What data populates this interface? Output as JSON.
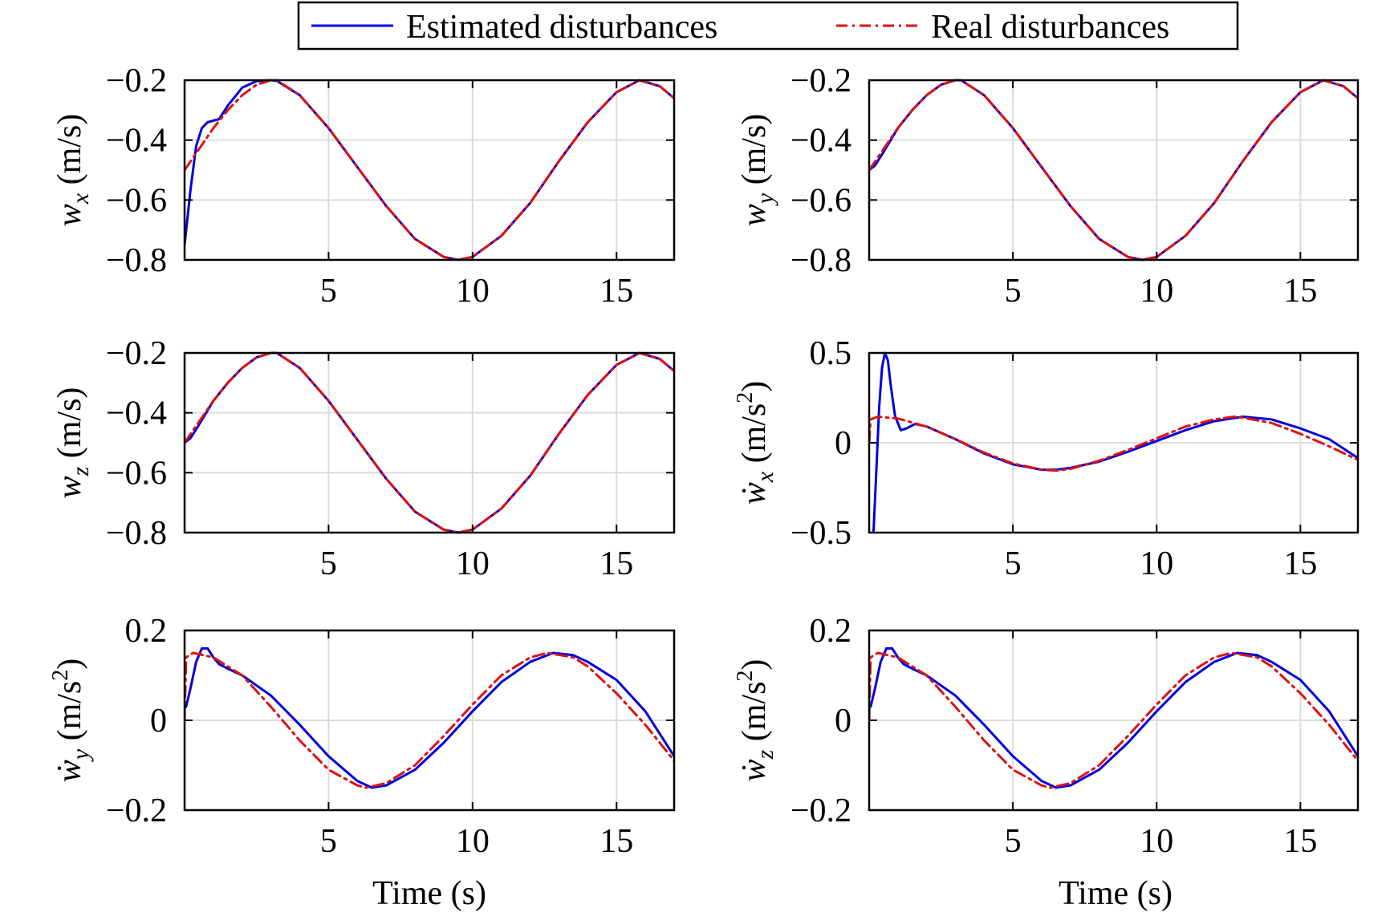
{
  "legend": {
    "estimated_label": "Estimated disturbances",
    "real_label": "Real disturbances"
  },
  "colors": {
    "estimated": "#0000dd",
    "real": "#dd1111",
    "grid": "#dcdcdc",
    "axis": "#000000"
  },
  "xlabel": "Time (s)",
  "chart_data": [
    {
      "type": "line",
      "id": "wx",
      "ylabel": {
        "base": "w",
        "sub": "x",
        "dot": false,
        "unit": " (m/s)",
        "sup": ""
      },
      "xlim": [
        0,
        17
      ],
      "ylim": [
        -0.8,
        -0.2
      ],
      "xticks": [
        "5",
        "10",
        "15"
      ],
      "yticks": [
        "−0.2",
        "−0.4",
        "−0.6",
        "−0.8"
      ],
      "grid": true,
      "series": [
        {
          "name": "Estimated disturbances",
          "style": "solid",
          "x": [
            0,
            0.2,
            0.4,
            0.6,
            0.8,
            1.0,
            1.2,
            1.5,
            2.0,
            2.5,
            3.0,
            3.2,
            4.0,
            5.0,
            6.0,
            7.0,
            8.0,
            9.0,
            9.5,
            10.0,
            11.0,
            12.0,
            13.0,
            14.0,
            15.0,
            15.8,
            16.5,
            17.0
          ],
          "y": [
            -0.75,
            -0.57,
            -0.42,
            -0.36,
            -0.34,
            -0.335,
            -0.33,
            -0.285,
            -0.225,
            -0.203,
            -0.2,
            -0.202,
            -0.25,
            -0.36,
            -0.49,
            -0.62,
            -0.73,
            -0.79,
            -0.8,
            -0.79,
            -0.72,
            -0.61,
            -0.47,
            -0.34,
            -0.24,
            -0.2,
            -0.22,
            -0.26
          ]
        },
        {
          "name": "Real disturbances",
          "style": "dashdot",
          "x": [
            0,
            0.5,
            1.0,
            1.5,
            2.0,
            2.5,
            3.0,
            3.2,
            4.0,
            5.0,
            6.0,
            7.0,
            8.0,
            9.0,
            9.5,
            10.0,
            11.0,
            12.0,
            13.0,
            14.0,
            15.0,
            15.8,
            16.5,
            17.0
          ],
          "y": [
            -0.5,
            -0.43,
            -0.36,
            -0.3,
            -0.25,
            -0.215,
            -0.2,
            -0.2,
            -0.25,
            -0.36,
            -0.49,
            -0.62,
            -0.73,
            -0.79,
            -0.8,
            -0.79,
            -0.72,
            -0.61,
            -0.47,
            -0.34,
            -0.24,
            -0.2,
            -0.22,
            -0.26
          ]
        }
      ]
    },
    {
      "type": "line",
      "id": "wy",
      "ylabel": {
        "base": "w",
        "sub": "y",
        "dot": false,
        "unit": " (m/s)",
        "sup": ""
      },
      "xlim": [
        0,
        17
      ],
      "ylim": [
        -0.8,
        -0.2
      ],
      "xticks": [
        "5",
        "10",
        "15"
      ],
      "yticks": [
        "−0.2",
        "−0.4",
        "−0.6",
        "−0.8"
      ],
      "grid": true,
      "series": [
        {
          "name": "Estimated disturbances",
          "style": "solid",
          "x": [
            0,
            0.2,
            0.5,
            1.0,
            1.5,
            2.0,
            2.5,
            3.0,
            3.2,
            4.0,
            5.0,
            6.0,
            7.0,
            8.0,
            9.0,
            9.5,
            10.0,
            11.0,
            12.0,
            13.0,
            14.0,
            15.0,
            15.8,
            16.5,
            17.0
          ],
          "y": [
            -0.5,
            -0.485,
            -0.44,
            -0.36,
            -0.3,
            -0.25,
            -0.215,
            -0.2,
            -0.2,
            -0.25,
            -0.36,
            -0.49,
            -0.62,
            -0.73,
            -0.79,
            -0.8,
            -0.79,
            -0.72,
            -0.61,
            -0.47,
            -0.34,
            -0.24,
            -0.2,
            -0.22,
            -0.26
          ]
        },
        {
          "name": "Real disturbances",
          "style": "dashdot",
          "x": [
            0,
            0.5,
            1.0,
            1.5,
            2.0,
            2.5,
            3.0,
            3.2,
            4.0,
            5.0,
            6.0,
            7.0,
            8.0,
            9.0,
            9.5,
            10.0,
            11.0,
            12.0,
            13.0,
            14.0,
            15.0,
            15.8,
            16.5,
            17.0
          ],
          "y": [
            -0.5,
            -0.43,
            -0.36,
            -0.3,
            -0.25,
            -0.215,
            -0.2,
            -0.2,
            -0.25,
            -0.36,
            -0.49,
            -0.62,
            -0.73,
            -0.79,
            -0.8,
            -0.79,
            -0.72,
            -0.61,
            -0.47,
            -0.34,
            -0.24,
            -0.2,
            -0.22,
            -0.26
          ]
        }
      ]
    },
    {
      "type": "line",
      "id": "wz",
      "ylabel": {
        "base": "w",
        "sub": "z",
        "dot": false,
        "unit": " (m/s)",
        "sup": ""
      },
      "xlim": [
        0,
        17
      ],
      "ylim": [
        -0.8,
        -0.2
      ],
      "xticks": [
        "5",
        "10",
        "15"
      ],
      "yticks": [
        "−0.2",
        "−0.4",
        "−0.6",
        "−0.8"
      ],
      "grid": true,
      "series": [
        {
          "name": "Estimated disturbances",
          "style": "solid",
          "x": [
            0,
            0.2,
            0.5,
            1.0,
            1.5,
            2.0,
            2.5,
            3.0,
            3.2,
            4.0,
            5.0,
            6.0,
            7.0,
            8.0,
            9.0,
            9.5,
            10.0,
            11.0,
            12.0,
            13.0,
            14.0,
            15.0,
            15.8,
            16.5,
            17.0
          ],
          "y": [
            -0.5,
            -0.485,
            -0.44,
            -0.36,
            -0.3,
            -0.25,
            -0.215,
            -0.2,
            -0.2,
            -0.25,
            -0.36,
            -0.49,
            -0.62,
            -0.73,
            -0.79,
            -0.8,
            -0.79,
            -0.72,
            -0.61,
            -0.47,
            -0.34,
            -0.24,
            -0.2,
            -0.22,
            -0.26
          ]
        },
        {
          "name": "Real disturbances",
          "style": "dashdot",
          "x": [
            0,
            0.5,
            1.0,
            1.5,
            2.0,
            2.5,
            3.0,
            3.2,
            4.0,
            5.0,
            6.0,
            7.0,
            8.0,
            9.0,
            9.5,
            10.0,
            11.0,
            12.0,
            13.0,
            14.0,
            15.0,
            15.8,
            16.5,
            17.0
          ],
          "y": [
            -0.5,
            -0.43,
            -0.36,
            -0.3,
            -0.25,
            -0.215,
            -0.2,
            -0.2,
            -0.25,
            -0.36,
            -0.49,
            -0.62,
            -0.73,
            -0.79,
            -0.8,
            -0.79,
            -0.72,
            -0.61,
            -0.47,
            -0.34,
            -0.24,
            -0.2,
            -0.22,
            -0.26
          ]
        }
      ]
    },
    {
      "type": "line",
      "id": "wx-dot",
      "ylabel": {
        "base": "w",
        "sub": "x",
        "dot": true,
        "unit": " (m/s",
        "sup": "2"
      },
      "xlim": [
        0,
        17
      ],
      "ylim": [
        -0.5,
        0.5
      ],
      "xticks": [
        "5",
        "10",
        "15"
      ],
      "yticks": [
        "0.5",
        "0",
        "−0.5"
      ],
      "grid": true,
      "series": [
        {
          "name": "Estimated disturbances",
          "style": "solid",
          "x": [
            0.15,
            0.25,
            0.35,
            0.45,
            0.55,
            0.65,
            0.75,
            0.9,
            1.1,
            1.3,
            1.6,
            2.0,
            3.0,
            4.0,
            5.0,
            6.0,
            6.5,
            7.0,
            8.0,
            9.0,
            10.0,
            11.0,
            12.0,
            13.0,
            14.0,
            15.0,
            16.0,
            17.0
          ],
          "y": [
            -0.5,
            -0.15,
            0.2,
            0.42,
            0.5,
            0.46,
            0.32,
            0.15,
            0.07,
            0.08,
            0.105,
            0.09,
            0.02,
            -0.06,
            -0.12,
            -0.15,
            -0.15,
            -0.14,
            -0.105,
            -0.05,
            0.01,
            0.07,
            0.12,
            0.145,
            0.13,
            0.08,
            0.02,
            -0.085
          ]
        },
        {
          "name": "Real disturbances",
          "style": "dashdot",
          "x": [
            0,
            0.05,
            0.3,
            1.0,
            2.0,
            3.0,
            4.0,
            5.0,
            6.0,
            6.5,
            7.0,
            8.0,
            9.0,
            10.0,
            11.0,
            12.0,
            12.7,
            13.0,
            14.0,
            15.0,
            16.0,
            17.0
          ],
          "y": [
            0.0,
            0.13,
            0.145,
            0.135,
            0.09,
            0.02,
            -0.055,
            -0.115,
            -0.15,
            -0.155,
            -0.145,
            -0.1,
            -0.04,
            0.025,
            0.09,
            0.13,
            0.145,
            0.14,
            0.11,
            0.05,
            -0.02,
            -0.095
          ]
        }
      ]
    },
    {
      "type": "line",
      "id": "wy-dot",
      "ylabel": {
        "base": "w",
        "sub": "y",
        "dot": true,
        "unit": " (m/s",
        "sup": "2"
      },
      "xlim": [
        0,
        17
      ],
      "ylim": [
        -0.2,
        0.2
      ],
      "xticks": [
        "5",
        "10",
        "15"
      ],
      "yticks": [
        "0.2",
        "0",
        "−0.2"
      ],
      "grid": true,
      "series": [
        {
          "name": "Estimated disturbances",
          "style": "solid",
          "x": [
            0.05,
            0.2,
            0.4,
            0.6,
            0.8,
            1.0,
            1.2,
            1.5,
            2.0,
            3.0,
            4.0,
            5.0,
            6.0,
            6.5,
            7.0,
            8.0,
            9.0,
            10.0,
            11.0,
            12.0,
            12.8,
            13.5,
            14.0,
            15.0,
            16.0,
            17.0
          ],
          "y": [
            0.03,
            0.07,
            0.13,
            0.16,
            0.16,
            0.14,
            0.125,
            0.115,
            0.1,
            0.055,
            -0.01,
            -0.08,
            -0.135,
            -0.15,
            -0.145,
            -0.11,
            -0.05,
            0.02,
            0.085,
            0.13,
            0.15,
            0.145,
            0.13,
            0.09,
            0.02,
            -0.08
          ]
        },
        {
          "name": "Real disturbances",
          "style": "dashdot",
          "x": [
            0,
            0.05,
            0.3,
            1.0,
            2.0,
            3.0,
            4.0,
            5.0,
            6.0,
            6.3,
            7.0,
            8.0,
            9.0,
            10.0,
            11.0,
            12.0,
            12.6,
            13.5,
            14.0,
            15.0,
            16.0,
            17.0
          ],
          "y": [
            0.0,
            0.14,
            0.15,
            0.14,
            0.1,
            0.03,
            -0.045,
            -0.11,
            -0.145,
            -0.15,
            -0.14,
            -0.1,
            -0.035,
            0.035,
            0.1,
            0.14,
            0.15,
            0.14,
            0.12,
            0.06,
            -0.01,
            -0.09
          ]
        }
      ]
    },
    {
      "type": "line",
      "id": "wz-dot",
      "ylabel": {
        "base": "w",
        "sub": "z",
        "dot": true,
        "unit": " (m/s",
        "sup": "2"
      },
      "xlim": [
        0,
        17
      ],
      "ylim": [
        -0.2,
        0.2
      ],
      "xticks": [
        "5",
        "10",
        "15"
      ],
      "yticks": [
        "0.2",
        "0",
        "−0.2"
      ],
      "grid": true,
      "series": [
        {
          "name": "Estimated disturbances",
          "style": "solid",
          "x": [
            0.05,
            0.2,
            0.4,
            0.6,
            0.8,
            1.0,
            1.2,
            1.5,
            2.0,
            3.0,
            4.0,
            5.0,
            6.0,
            6.5,
            7.0,
            8.0,
            9.0,
            10.0,
            11.0,
            12.0,
            12.8,
            13.5,
            14.0,
            15.0,
            16.0,
            17.0
          ],
          "y": [
            0.03,
            0.07,
            0.13,
            0.16,
            0.16,
            0.14,
            0.125,
            0.115,
            0.1,
            0.055,
            -0.01,
            -0.08,
            -0.135,
            -0.15,
            -0.145,
            -0.11,
            -0.05,
            0.02,
            0.085,
            0.13,
            0.15,
            0.145,
            0.13,
            0.09,
            0.02,
            -0.08
          ]
        },
        {
          "name": "Real disturbances",
          "style": "dashdot",
          "x": [
            0,
            0.05,
            0.3,
            1.0,
            2.0,
            3.0,
            4.0,
            5.0,
            6.0,
            6.3,
            7.0,
            8.0,
            9.0,
            10.0,
            11.0,
            12.0,
            12.6,
            13.5,
            14.0,
            15.0,
            16.0,
            17.0
          ],
          "y": [
            0.0,
            0.14,
            0.15,
            0.14,
            0.1,
            0.03,
            -0.045,
            -0.11,
            -0.145,
            -0.15,
            -0.14,
            -0.1,
            -0.035,
            0.035,
            0.1,
            0.14,
            0.15,
            0.14,
            0.12,
            0.06,
            -0.01,
            -0.09
          ]
        }
      ]
    }
  ]
}
